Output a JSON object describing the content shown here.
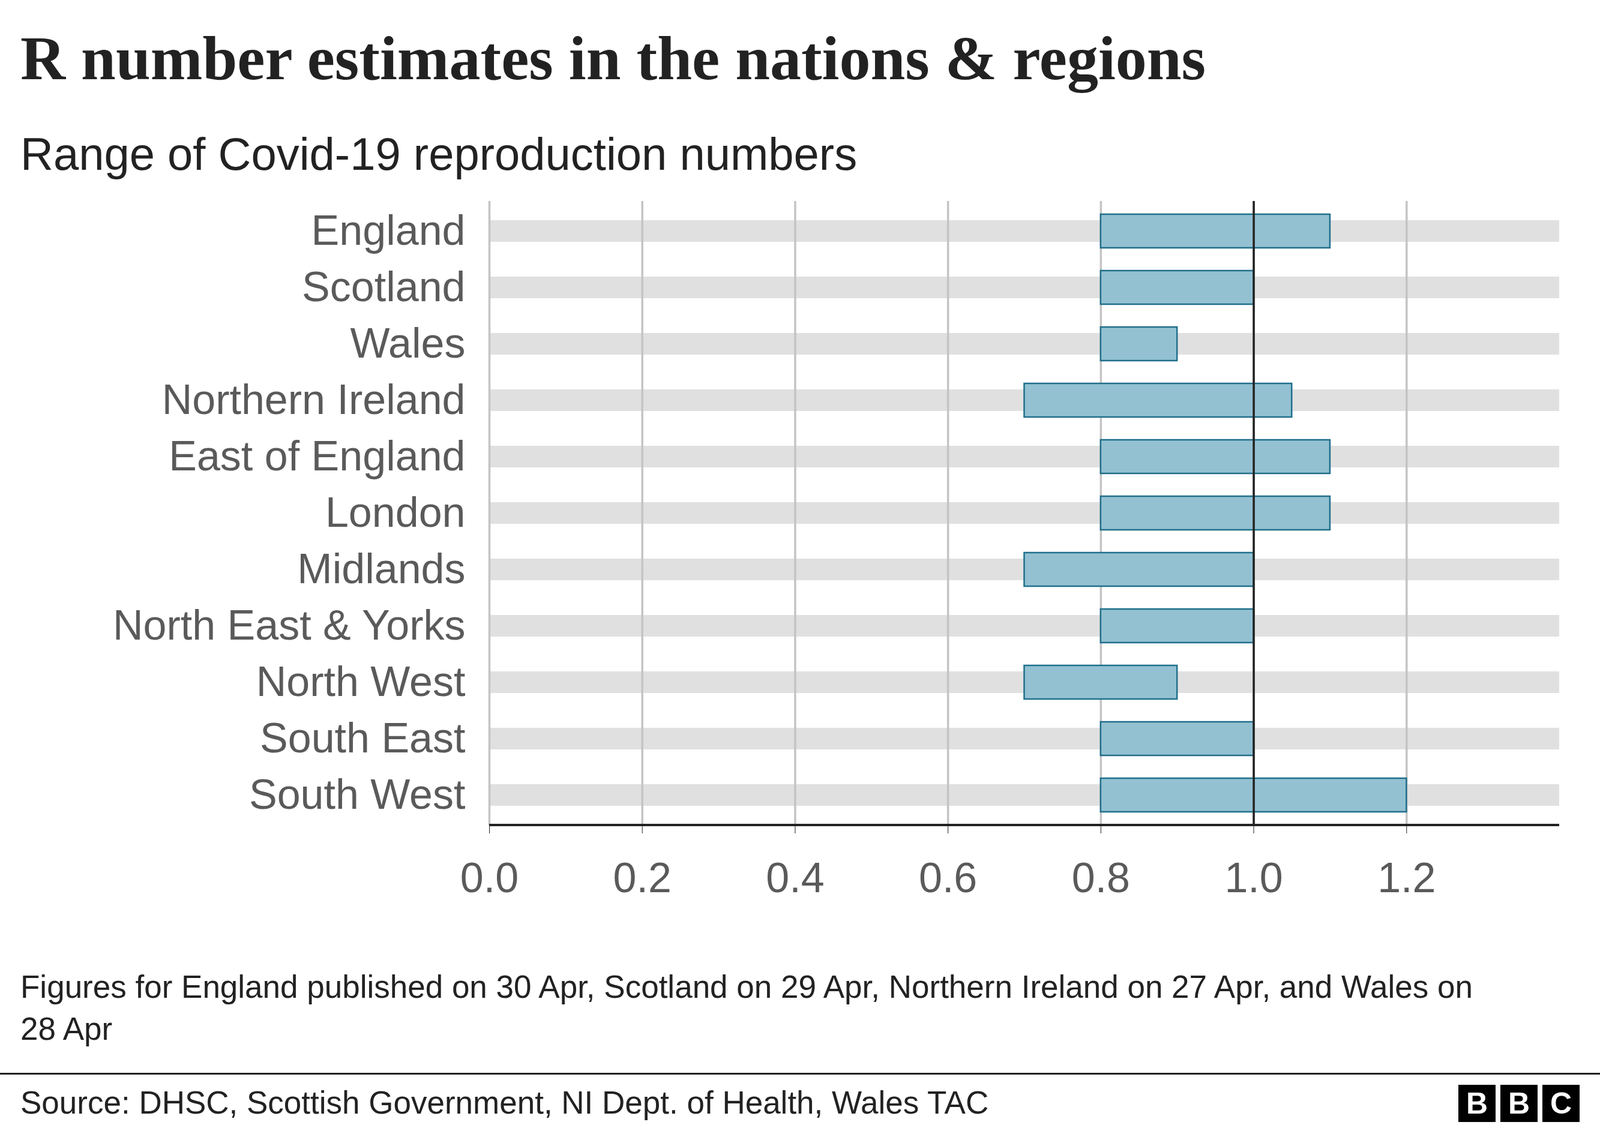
{
  "chart_data": {
    "type": "bar",
    "orientation": "horizontal",
    "title": "R number estimates in the nations & regions",
    "subtitle": "Range of Covid-19 reproduction numbers",
    "categories": [
      "England",
      "Scotland",
      "Wales",
      "Northern Ireland",
      "East of England",
      "London",
      "Midlands",
      "North East & Yorks",
      "North West",
      "South East",
      "South West"
    ],
    "low": [
      0.8,
      0.8,
      0.8,
      0.7,
      0.8,
      0.8,
      0.7,
      0.8,
      0.7,
      0.8,
      0.8
    ],
    "high": [
      1.1,
      1.0,
      0.9,
      1.05,
      1.1,
      1.1,
      1.0,
      1.0,
      0.9,
      1.0,
      1.2
    ],
    "color": "#93c1d2",
    "xlim": [
      0,
      1.4
    ],
    "xticks": [
      {
        "value": 0,
        "label": "0.0"
      },
      0.2,
      0.4,
      0.6,
      0.8,
      {
        "value": 1,
        "label": "1.0"
      },
      1.2
    ],
    "grid": true,
    "reference_line": 1,
    "caption": "Figures for England published on 30 Apr, Scotland on 29 Apr, Northern Ireland on 27 Apr, and Wales on 28 Apr",
    "source": "Source: DHSC, Scottish Government, NI Dept. of Health, Wales TAC",
    "logo": "BBC"
  }
}
